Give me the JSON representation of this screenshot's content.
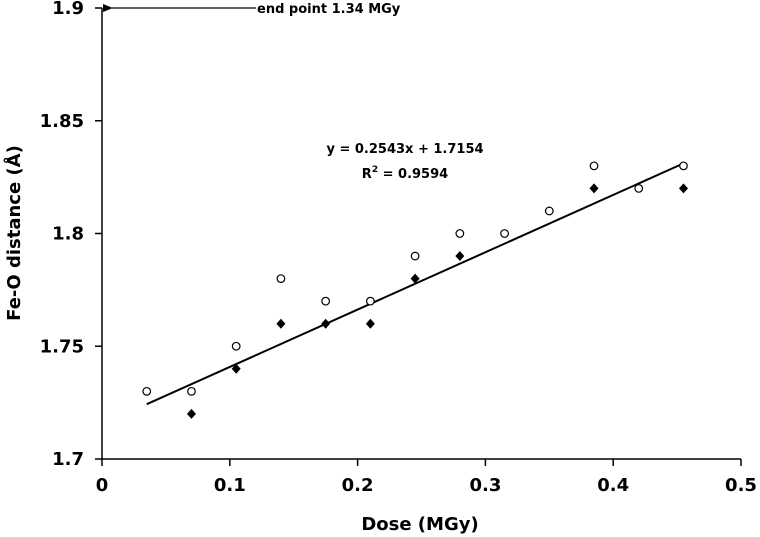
{
  "chart_data": {
    "type": "scatter",
    "xlabel": "Dose (MGy)",
    "ylabel": "Fe-O distance (Å)",
    "xlim": [
      0,
      0.5
    ],
    "xticks": [
      0,
      0.1,
      0.2,
      0.3,
      0.4,
      0.5
    ],
    "ylim": [
      1.7,
      1.9
    ],
    "yticks": [
      1.7,
      1.75,
      1.8,
      1.85,
      1.9
    ],
    "grid": false,
    "series": [
      {
        "marker": "circle",
        "color": "#000000",
        "x": [
          0.035,
          0.07,
          0.105,
          0.14,
          0.175,
          0.21,
          0.245,
          0.28,
          0.315,
          0.35,
          0.385,
          0.42,
          0.455
        ],
        "values": [
          1.73,
          1.73,
          1.75,
          1.78,
          1.77,
          1.77,
          1.79,
          1.8,
          1.8,
          1.81,
          1.83,
          1.82,
          1.83
        ]
      },
      {
        "marker": "diamond",
        "color": "#000000",
        "x": [
          0.07,
          0.105,
          0.14,
          0.175,
          0.21,
          0.245,
          0.28,
          0.385,
          0.455
        ],
        "values": [
          1.72,
          1.74,
          1.76,
          1.76,
          1.76,
          1.78,
          1.79,
          1.82,
          1.82
        ]
      }
    ],
    "trendline": {
      "color": "#000000",
      "x": [
        0.035,
        0.455
      ],
      "values": [
        1.7243,
        1.8311
      ],
      "equation": "y = 0.2543x + 1.7154",
      "r2_base": "R",
      "r2_sup": "2",
      "r2_value": " = 0.9594"
    },
    "annotation": {
      "text": "end point 1.34 MGy",
      "x": 0,
      "y": 1.9
    }
  }
}
